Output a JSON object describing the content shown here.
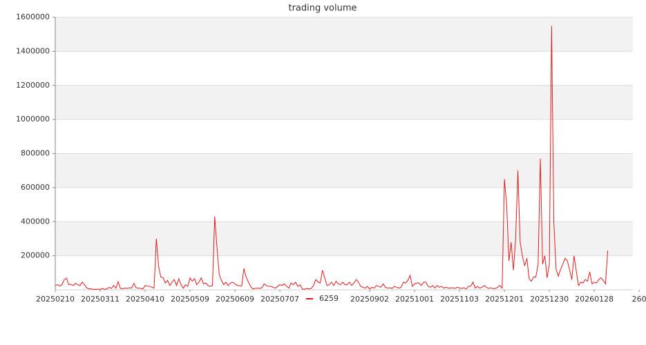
{
  "chart_data": {
    "type": "line",
    "title": "trading volume",
    "xlim": [
      0,
      257.2
    ],
    "xticks": [
      {
        "value": 0,
        "label": "20250210"
      },
      {
        "value": 20,
        "label": "20250311"
      },
      {
        "value": 40,
        "label": "20250410"
      },
      {
        "value": 60,
        "label": "20250509"
      },
      {
        "value": 80,
        "label": "20250609"
      },
      {
        "value": 100,
        "label": "20250707"
      },
      {
        "value": 140,
        "label": "20250902"
      },
      {
        "value": 160,
        "label": "20251001"
      },
      {
        "value": 180,
        "label": "20251103"
      },
      {
        "value": 200,
        "label": "20251201"
      },
      {
        "value": 220,
        "label": "20251230"
      },
      {
        "value": 240,
        "label": "20260128"
      },
      {
        "value": 260,
        "label": "260"
      }
    ],
    "ylim": [
      0,
      1600000
    ],
    "yticks": [
      200000,
      400000,
      600000,
      800000,
      1000000,
      1200000,
      1400000,
      1600000
    ],
    "grid": true,
    "legend": "bottom",
    "series": [
      {
        "name": "6259",
        "color": "#e41a1c",
        "values": [
          25000,
          30000,
          22000,
          30000,
          60000,
          68000,
          30000,
          33000,
          25000,
          38000,
          30000,
          25000,
          45000,
          30000,
          12000,
          6000,
          5000,
          3000,
          2000,
          4000,
          2000,
          8000,
          3000,
          5000,
          15000,
          8000,
          25000,
          10000,
          48000,
          8000,
          6000,
          10000,
          8000,
          12000,
          10000,
          38000,
          12000,
          10000,
          8000,
          5000,
          25000,
          22000,
          20000,
          15000,
          10000,
          300000,
          140000,
          75000,
          72000,
          40000,
          55000,
          25000,
          45000,
          60000,
          25000,
          65000,
          30000,
          10000,
          30000,
          20000,
          70000,
          50000,
          65000,
          30000,
          45000,
          70000,
          35000,
          40000,
          25000,
          20000,
          25000,
          430000,
          250000,
          90000,
          55000,
          30000,
          45000,
          25000,
          40000,
          45000,
          35000,
          25000,
          25000,
          22000,
          125000,
          75000,
          45000,
          20000,
          5000,
          8000,
          10000,
          8000,
          12000,
          35000,
          25000,
          20000,
          20000,
          15000,
          10000,
          20000,
          30000,
          25000,
          35000,
          20000,
          10000,
          40000,
          30000,
          45000,
          20000,
          30000,
          5000,
          3000,
          8000,
          5000,
          8000,
          25000,
          60000,
          45000,
          40000,
          115000,
          70000,
          25000,
          30000,
          45000,
          25000,
          50000,
          35000,
          30000,
          45000,
          30000,
          30000,
          45000,
          25000,
          40000,
          60000,
          45000,
          20000,
          15000,
          10000,
          20000,
          5000,
          15000,
          10000,
          25000,
          20000,
          15000,
          35000,
          15000,
          10000,
          12000,
          8000,
          20000,
          15000,
          10000,
          15000,
          45000,
          40000,
          55000,
          85000,
          20000,
          35000,
          40000,
          40000,
          25000,
          45000,
          45000,
          20000,
          15000,
          25000,
          10000,
          25000,
          15000,
          20000,
          10000,
          15000,
          10000,
          10000,
          12000,
          8000,
          15000,
          10000,
          8000,
          12000,
          5000,
          20000,
          20000,
          45000,
          10000,
          20000,
          10000,
          15000,
          25000,
          15000,
          8000,
          12000,
          6000,
          8000,
          15000,
          25000,
          10000,
          650000,
          500000,
          170000,
          280000,
          115000,
          300000,
          700000,
          280000,
          200000,
          140000,
          185000,
          65000,
          50000,
          75000,
          75000,
          150000,
          770000,
          150000,
          200000,
          70000,
          150000,
          1550000,
          400000,
          120000,
          80000,
          120000,
          150000,
          185000,
          170000,
          120000,
          60000,
          200000,
          110000,
          25000,
          45000,
          40000,
          60000,
          50000,
          105000,
          35000,
          45000,
          40000,
          60000,
          70000,
          55000,
          35000,
          230000
        ]
      }
    ]
  }
}
